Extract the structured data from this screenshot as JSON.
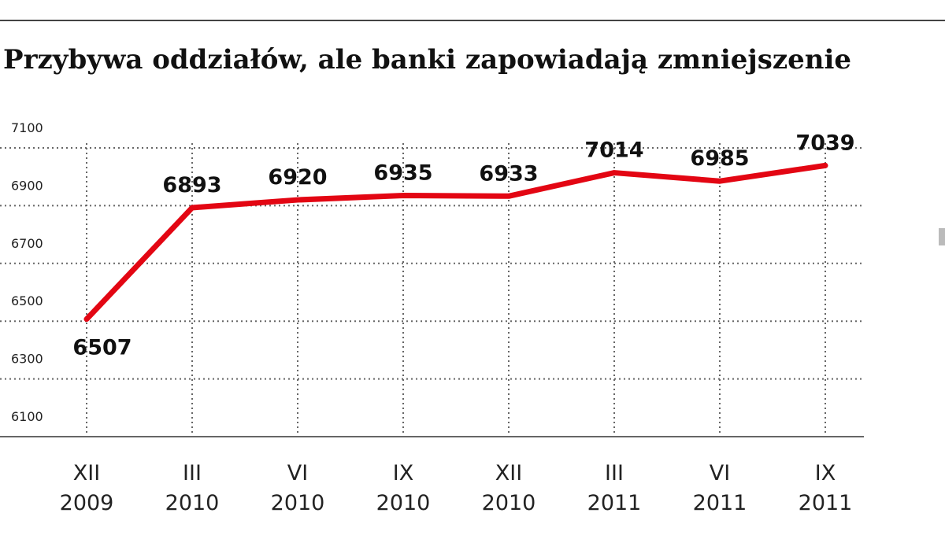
{
  "title": "Przybywa oddziałów, ale banki zapowiadają zmniejszenie",
  "colors": {
    "line": "#e30613",
    "grid": "#666666",
    "text": "#111111",
    "rule": "#444444"
  },
  "chart_data": {
    "type": "line",
    "title": "Przybywa oddziałów, ale banki zapowiadają zmniejszenie",
    "xlabel": "",
    "ylabel": "",
    "categories": [
      [
        "XII",
        "2009"
      ],
      [
        "III",
        "2010"
      ],
      [
        "VI",
        "2010"
      ],
      [
        "IX",
        "2010"
      ],
      [
        "XII",
        "2010"
      ],
      [
        "III",
        "2011"
      ],
      [
        "VI",
        "2011"
      ],
      [
        "IX",
        "2011"
      ]
    ],
    "series": [
      {
        "values": [
          6507,
          6893,
          6920,
          6935,
          6933,
          7014,
          6985,
          7039
        ],
        "color": "#e30613"
      }
    ],
    "y_ticks": [
      6100,
      6300,
      6500,
      6700,
      6900,
      7100
    ],
    "ylim": [
      6100,
      7100
    ],
    "grid": true,
    "grid_style": "dotted",
    "legend": "none"
  }
}
